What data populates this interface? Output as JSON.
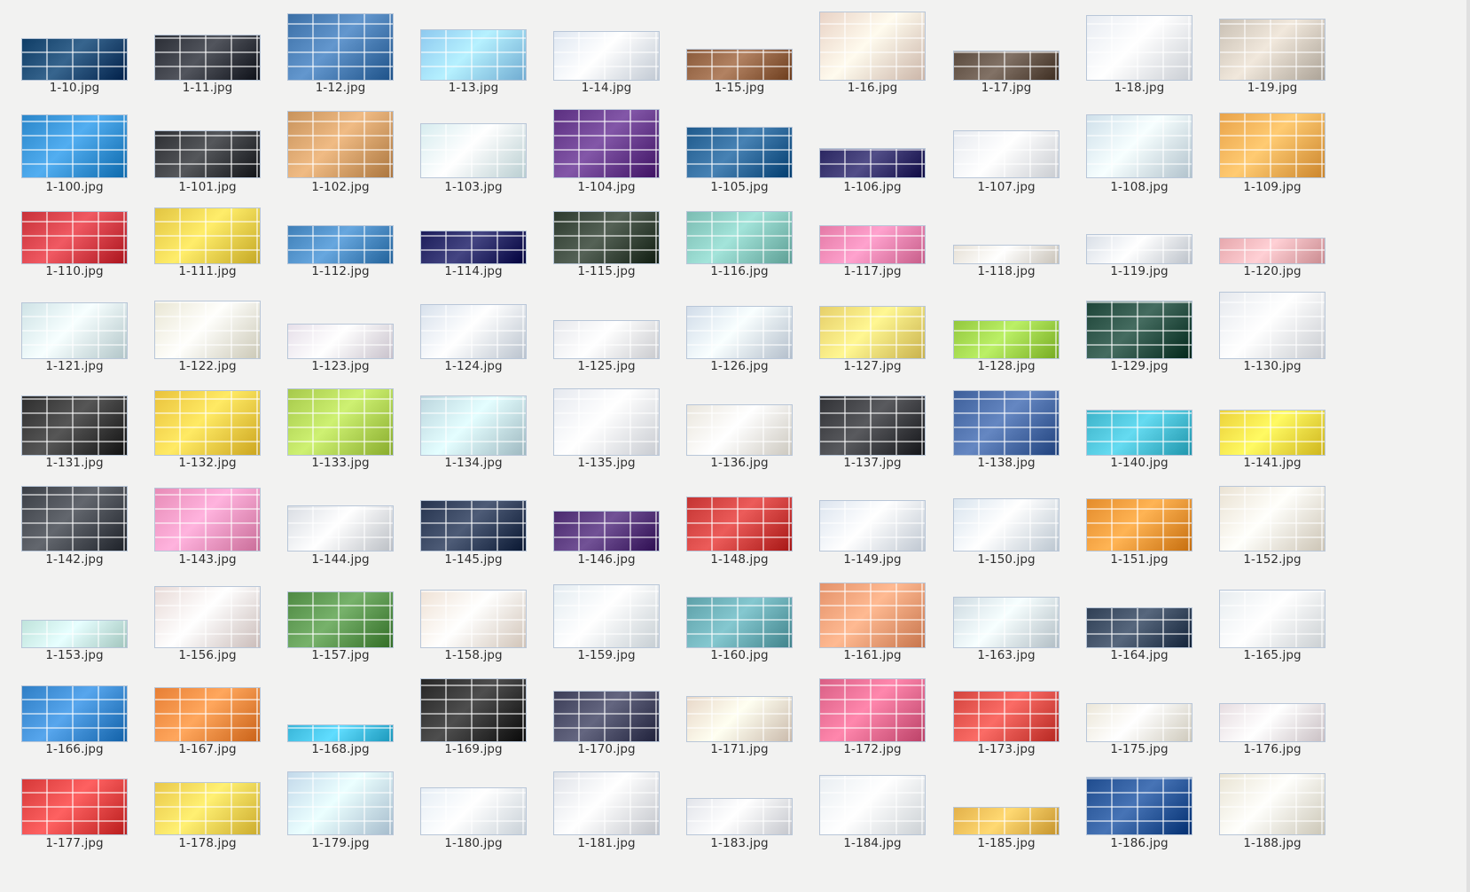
{
  "window": {
    "title": ""
  },
  "files": [
    {
      "name": "1-10.jpg",
      "h": 46,
      "theme": "#0f3d66"
    },
    {
      "name": "1-11.jpg",
      "h": 50,
      "theme": "#2a2d35"
    },
    {
      "name": "1-12.jpg",
      "h": 74,
      "theme": "#3b6fa6"
    },
    {
      "name": "1-13.jpg",
      "h": 56,
      "theme": "#8ec9ef"
    },
    {
      "name": "1-14.jpg",
      "h": 54,
      "theme": "#dfe7f1"
    },
    {
      "name": "1-15.jpg",
      "h": 34,
      "theme": "#8a5a3a"
    },
    {
      "name": "1-16.jpg",
      "h": 76,
      "theme": "#e9d3c6"
    },
    {
      "name": "1-17.jpg",
      "h": 32,
      "theme": "#5a4a3e"
    },
    {
      "name": "1-18.jpg",
      "h": 72,
      "theme": "#e8ecf2"
    },
    {
      "name": "1-19.jpg",
      "h": 68,
      "theme": "#c9c0b4"
    },
    {
      "name": "1-100.jpg",
      "h": 70,
      "theme": "#2a86c9"
    },
    {
      "name": "1-101.jpg",
      "h": 52,
      "theme": "#2d2f33"
    },
    {
      "name": "1-102.jpg",
      "h": 74,
      "theme": "#c8935c"
    },
    {
      "name": "1-103.jpg",
      "h": 60,
      "theme": "#d7ecef"
    },
    {
      "name": "1-104.jpg",
      "h": 76,
      "theme": "#5b2f80"
    },
    {
      "name": "1-105.jpg",
      "h": 56,
      "theme": "#1f5a8c"
    },
    {
      "name": "1-106.jpg",
      "h": 32,
      "theme": "#2a2660"
    },
    {
      "name": "1-107.jpg",
      "h": 52,
      "theme": "#e7eaef"
    },
    {
      "name": "1-108.jpg",
      "h": 70,
      "theme": "#cfe0ea"
    },
    {
      "name": "1-109.jpg",
      "h": 72,
      "theme": "#e9a34a"
    },
    {
      "name": "1-110.jpg",
      "h": 58,
      "theme": "#c8313a"
    },
    {
      "name": "1-111.jpg",
      "h": 62,
      "theme": "#e2c542"
    },
    {
      "name": "1-112.jpg",
      "h": 42,
      "theme": "#3f7fb7"
    },
    {
      "name": "1-114.jpg",
      "h": 36,
      "theme": "#1c1d5a"
    },
    {
      "name": "1-115.jpg",
      "h": 58,
      "theme": "#2d3a2e"
    },
    {
      "name": "1-116.jpg",
      "h": 58,
      "theme": "#7bbcb2"
    },
    {
      "name": "1-117.jpg",
      "h": 42,
      "theme": "#e47aa6"
    },
    {
      "name": "1-118.jpg",
      "h": 20,
      "theme": "#e6e0d6"
    },
    {
      "name": "1-119.jpg",
      "h": 32,
      "theme": "#d9dfe7"
    },
    {
      "name": "1-120.jpg",
      "h": 28,
      "theme": "#e7a8ad"
    },
    {
      "name": "1-121.jpg",
      "h": 62,
      "theme": "#cfe3e6"
    },
    {
      "name": "1-122.jpg",
      "h": 64,
      "theme": "#e9e6d4"
    },
    {
      "name": "1-123.jpg",
      "h": 38,
      "theme": "#e6dfe9"
    },
    {
      "name": "1-124.jpg",
      "h": 60,
      "theme": "#d8e1ec"
    },
    {
      "name": "1-125.jpg",
      "h": 42,
      "theme": "#e7e8ec"
    },
    {
      "name": "1-126.jpg",
      "h": 58,
      "theme": "#d1dce9"
    },
    {
      "name": "1-127.jpg",
      "h": 58,
      "theme": "#e6cf6a"
    },
    {
      "name": "1-128.jpg",
      "h": 42,
      "theme": "#93c83e"
    },
    {
      "name": "1-129.jpg",
      "h": 64,
      "theme": "#1d4438"
    },
    {
      "name": "1-130.jpg",
      "h": 74,
      "theme": "#e6e9ee"
    },
    {
      "name": "1-131.jpg",
      "h": 66,
      "theme": "#2e2e2e"
    },
    {
      "name": "1-132.jpg",
      "h": 72,
      "theme": "#e9c23c"
    },
    {
      "name": "1-133.jpg",
      "h": 74,
      "theme": "#a6c94a"
    },
    {
      "name": "1-134.jpg",
      "h": 66,
      "theme": "#bcd6de"
    },
    {
      "name": "1-135.jpg",
      "h": 74,
      "theme": "#e6e9ef"
    },
    {
      "name": "1-136.jpg",
      "h": 56,
      "theme": "#eae6dd"
    },
    {
      "name": "1-137.jpg",
      "h": 66,
      "theme": "#313236"
    },
    {
      "name": "1-138.jpg",
      "h": 72,
      "theme": "#3d5f9a"
    },
    {
      "name": "1-140.jpg",
      "h": 50,
      "theme": "#3db3c9"
    },
    {
      "name": "1-141.jpg",
      "h": 50,
      "theme": "#ecd23a"
    },
    {
      "name": "1-142.jpg",
      "h": 72,
      "theme": "#3b3f46"
    },
    {
      "name": "1-143.jpg",
      "h": 70,
      "theme": "#e78bb6"
    },
    {
      "name": "1-144.jpg",
      "h": 50,
      "theme": "#d9dde3"
    },
    {
      "name": "1-145.jpg",
      "h": 56,
      "theme": "#26344f"
    },
    {
      "name": "1-146.jpg",
      "h": 44,
      "theme": "#4a2a6e"
    },
    {
      "name": "1-148.jpg",
      "h": 60,
      "theme": "#c43432"
    },
    {
      "name": "1-149.jpg",
      "h": 56,
      "theme": "#dde5ef"
    },
    {
      "name": "1-150.jpg",
      "h": 58,
      "theme": "#d9e4ee"
    },
    {
      "name": "1-151.jpg",
      "h": 58,
      "theme": "#e48c2c"
    },
    {
      "name": "1-152.jpg",
      "h": 72,
      "theme": "#eae2d3"
    },
    {
      "name": "1-153.jpg",
      "h": 30,
      "theme": "#bfe3db"
    },
    {
      "name": "1-156.jpg",
      "h": 68,
      "theme": "#e8dad7"
    },
    {
      "name": "1-157.jpg",
      "h": 62,
      "theme": "#4f8a43"
    },
    {
      "name": "1-158.jpg",
      "h": 64,
      "theme": "#efe2d6"
    },
    {
      "name": "1-159.jpg",
      "h": 70,
      "theme": "#e4ecf1"
    },
    {
      "name": "1-160.jpg",
      "h": 56,
      "theme": "#5da0a8"
    },
    {
      "name": "1-161.jpg",
      "h": 72,
      "theme": "#e4926a"
    },
    {
      "name": "1-163.jpg",
      "h": 56,
      "theme": "#cfdbe2"
    },
    {
      "name": "1-164.jpg",
      "h": 44,
      "theme": "#2f3f55"
    },
    {
      "name": "1-165.jpg",
      "h": 64,
      "theme": "#e8edf0"
    },
    {
      "name": "1-166.jpg",
      "h": 62,
      "theme": "#2f7ec5"
    },
    {
      "name": "1-167.jpg",
      "h": 60,
      "theme": "#e77f35"
    },
    {
      "name": "1-168.jpg",
      "h": 18,
      "theme": "#38b5d8"
    },
    {
      "name": "1-169.jpg",
      "h": 70,
      "theme": "#262626"
    },
    {
      "name": "1-170.jpg",
      "h": 56,
      "theme": "#3c3e58"
    },
    {
      "name": "1-171.jpg",
      "h": 50,
      "theme": "#e8d8c9"
    },
    {
      "name": "1-172.jpg",
      "h": 70,
      "theme": "#d95f85"
    },
    {
      "name": "1-173.jpg",
      "h": 56,
      "theme": "#d3443e"
    },
    {
      "name": "1-175.jpg",
      "h": 42,
      "theme": "#ece7d9"
    },
    {
      "name": "1-176.jpg",
      "h": 42,
      "theme": "#e7dde1"
    },
    {
      "name": "1-177.jpg",
      "h": 62,
      "theme": "#d63939"
    },
    {
      "name": "1-178.jpg",
      "h": 58,
      "theme": "#e9c84a"
    },
    {
      "name": "1-179.jpg",
      "h": 70,
      "theme": "#c3d9ea"
    },
    {
      "name": "1-180.jpg",
      "h": 52,
      "theme": "#e6eef5"
    },
    {
      "name": "1-181.jpg",
      "h": 70,
      "theme": "#dfe2e8"
    },
    {
      "name": "1-183.jpg",
      "h": 40,
      "theme": "#e2e4ea"
    },
    {
      "name": "1-184.jpg",
      "h": 66,
      "theme": "#e9eef2"
    },
    {
      "name": "1-185.jpg",
      "h": 30,
      "theme": "#e3b14a"
    },
    {
      "name": "1-186.jpg",
      "h": 64,
      "theme": "#1f4c8e"
    },
    {
      "name": "1-188.jpg",
      "h": 68,
      "theme": "#e9e4d4"
    }
  ]
}
